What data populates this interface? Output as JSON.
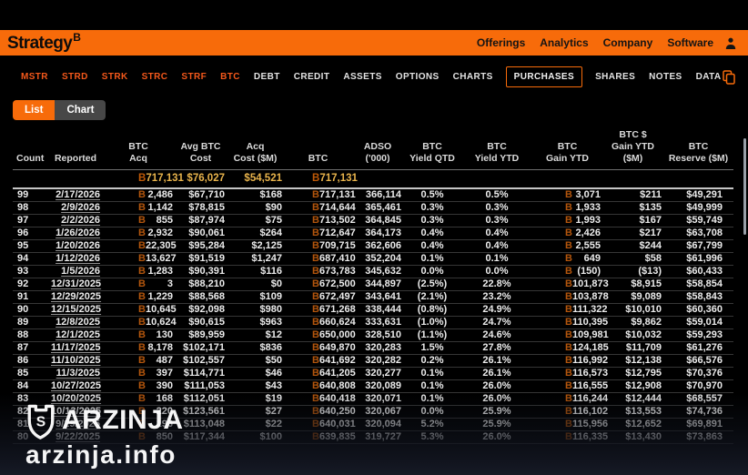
{
  "brand": {
    "logo_text": "Strategy",
    "logo_mark": "B"
  },
  "nav": {
    "items": [
      "Offerings",
      "Analytics",
      "Company",
      "Software"
    ]
  },
  "icons": {
    "account": "person-icon",
    "copy": "copy-icon",
    "watermark_shield": "shield-logo-icon"
  },
  "colors": {
    "accent_orange": "#F76B0A",
    "summary_gold": "#E9B44C",
    "btc_symbol_orange": "#B4560D",
    "background": "#000000"
  },
  "tabs": [
    {
      "label": "MSTR",
      "accent": true
    },
    {
      "label": "STRD",
      "accent": true
    },
    {
      "label": "STRK",
      "accent": true
    },
    {
      "label": "STRC",
      "accent": true
    },
    {
      "label": "STRF",
      "accent": true
    },
    {
      "label": "BTC",
      "accent": true
    },
    {
      "label": "DEBT"
    },
    {
      "label": "CREDIT"
    },
    {
      "label": "ASSETS"
    },
    {
      "label": "OPTIONS"
    },
    {
      "label": "CHARTS"
    },
    {
      "label": "PURCHASES",
      "active": true
    },
    {
      "label": "SHARES"
    },
    {
      "label": "NOTES"
    },
    {
      "label": "DATA"
    }
  ],
  "view_toggle": [
    {
      "label": "List",
      "active": true
    },
    {
      "label": "Chart",
      "active": false
    }
  ],
  "table": {
    "btc_symbol": "B",
    "columns": [
      {
        "id": "count",
        "label": "Count"
      },
      {
        "id": "reported",
        "label": "Reported"
      },
      {
        "id": "btc_acq",
        "label": "BTC\nAcq",
        "btc": true
      },
      {
        "id": "avg_cost",
        "label": "Avg BTC\nCost"
      },
      {
        "id": "acq_cost",
        "label": "Acq\nCost ($M)"
      },
      {
        "id": "btc",
        "label": "BTC",
        "btc": true
      },
      {
        "id": "adso",
        "label": "ADSO ('000)"
      },
      {
        "id": "yield_qtd",
        "label": "BTC\nYield QTD"
      },
      {
        "id": "yield_ytd",
        "label": "BTC\nYield YTD"
      },
      {
        "id": "gain_ytd",
        "label": "BTC\nGain YTD",
        "btc": true
      },
      {
        "id": "gain_usd",
        "label": "BTC $\nGain YTD ($M)"
      },
      {
        "id": "reserve",
        "label": "BTC\nReserve ($M)"
      }
    ],
    "summary": {
      "btc_acq": "717,131",
      "avg_cost": "$76,027",
      "acq_cost": "$54,521",
      "btc": "717,131"
    },
    "rows": [
      {
        "count": "99",
        "reported": "2/17/2026",
        "btc_acq": "2,486",
        "avg_cost": "$67,710",
        "acq_cost": "$168",
        "btc": "717,131",
        "adso": "366,114",
        "yield_qtd": "0.5%",
        "yield_ytd": "0.5%",
        "gain_ytd": "3,071",
        "gain_usd": "$211",
        "reserve": "$49,291"
      },
      {
        "count": "98",
        "reported": "2/9/2026",
        "btc_acq": "1,142",
        "avg_cost": "$78,815",
        "acq_cost": "$90",
        "btc": "714,644",
        "adso": "365,461",
        "yield_qtd": "0.3%",
        "yield_ytd": "0.3%",
        "gain_ytd": "1,933",
        "gain_usd": "$135",
        "reserve": "$49,999"
      },
      {
        "count": "97",
        "reported": "2/2/2026",
        "btc_acq": "855",
        "avg_cost": "$87,974",
        "acq_cost": "$75",
        "btc": "713,502",
        "adso": "364,845",
        "yield_qtd": "0.3%",
        "yield_ytd": "0.3%",
        "gain_ytd": "1,993",
        "gain_usd": "$167",
        "reserve": "$59,749"
      },
      {
        "count": "96",
        "reported": "1/26/2026",
        "btc_acq": "2,932",
        "avg_cost": "$90,061",
        "acq_cost": "$264",
        "btc": "712,647",
        "adso": "364,173",
        "yield_qtd": "0.4%",
        "yield_ytd": "0.4%",
        "gain_ytd": "2,426",
        "gain_usd": "$217",
        "reserve": "$63,708"
      },
      {
        "count": "95",
        "reported": "1/20/2026",
        "btc_acq": "22,305",
        "avg_cost": "$95,284",
        "acq_cost": "$2,125",
        "btc": "709,715",
        "adso": "362,606",
        "yield_qtd": "0.4%",
        "yield_ytd": "0.4%",
        "gain_ytd": "2,555",
        "gain_usd": "$244",
        "reserve": "$67,799"
      },
      {
        "count": "94",
        "reported": "1/12/2026",
        "btc_acq": "13,627",
        "avg_cost": "$91,519",
        "acq_cost": "$1,247",
        "btc": "687,410",
        "adso": "352,204",
        "yield_qtd": "0.1%",
        "yield_ytd": "0.1%",
        "gain_ytd": "649",
        "gain_usd": "$58",
        "reserve": "$61,996"
      },
      {
        "count": "93",
        "reported": "1/5/2026",
        "btc_acq": "1,283",
        "avg_cost": "$90,391",
        "acq_cost": "$116",
        "btc": "673,783",
        "adso": "345,632",
        "yield_qtd": "0.0%",
        "yield_ytd": "0.0%",
        "gain_ytd": "(150)",
        "gain_usd": "($13)",
        "reserve": "$60,433"
      },
      {
        "count": "92",
        "reported": "12/31/2025",
        "btc_acq": "3",
        "avg_cost": "$88,210",
        "acq_cost": "$0",
        "btc": "672,500",
        "adso": "344,897",
        "yield_qtd": "(2.5%)",
        "yield_ytd": "22.8%",
        "gain_ytd": "101,873",
        "gain_usd": "$8,915",
        "reserve": "$58,854"
      },
      {
        "count": "91",
        "reported": "12/29/2025",
        "btc_acq": "1,229",
        "avg_cost": "$88,568",
        "acq_cost": "$109",
        "btc": "672,497",
        "adso": "343,641",
        "yield_qtd": "(2.1%)",
        "yield_ytd": "23.2%",
        "gain_ytd": "103,878",
        "gain_usd": "$9,089",
        "reserve": "$58,843"
      },
      {
        "count": "90",
        "reported": "12/15/2025",
        "btc_acq": "10,645",
        "avg_cost": "$92,098",
        "acq_cost": "$980",
        "btc": "671,268",
        "adso": "338,444",
        "yield_qtd": "(0.8%)",
        "yield_ytd": "24.9%",
        "gain_ytd": "111,322",
        "gain_usd": "$10,010",
        "reserve": "$60,360"
      },
      {
        "count": "89",
        "reported": "12/8/2025",
        "btc_acq": "10,624",
        "avg_cost": "$90,615",
        "acq_cost": "$963",
        "btc": "660,624",
        "adso": "333,631",
        "yield_qtd": "(1.0%)",
        "yield_ytd": "24.7%",
        "gain_ytd": "110,395",
        "gain_usd": "$9,862",
        "reserve": "$59,014"
      },
      {
        "count": "88",
        "reported": "12/1/2025",
        "btc_acq": "130",
        "avg_cost": "$89,959",
        "acq_cost": "$12",
        "btc": "650,000",
        "adso": "328,510",
        "yield_qtd": "(1.1%)",
        "yield_ytd": "24.6%",
        "gain_ytd": "109,981",
        "gain_usd": "$10,032",
        "reserve": "$59,293"
      },
      {
        "count": "87",
        "reported": "11/17/2025",
        "btc_acq": "8,178",
        "avg_cost": "$102,171",
        "acq_cost": "$836",
        "btc": "649,870",
        "adso": "320,283",
        "yield_qtd": "1.5%",
        "yield_ytd": "27.8%",
        "gain_ytd": "124,185",
        "gain_usd": "$11,709",
        "reserve": "$61,276"
      },
      {
        "count": "86",
        "reported": "11/10/2025",
        "btc_acq": "487",
        "avg_cost": "$102,557",
        "acq_cost": "$50",
        "btc": "641,692",
        "adso": "320,282",
        "yield_qtd": "0.2%",
        "yield_ytd": "26.1%",
        "gain_ytd": "116,992",
        "gain_usd": "$12,138",
        "reserve": "$66,576"
      },
      {
        "count": "85",
        "reported": "11/3/2025",
        "btc_acq": "397",
        "avg_cost": "$114,771",
        "acq_cost": "$46",
        "btc": "641,205",
        "adso": "320,277",
        "yield_qtd": "0.1%",
        "yield_ytd": "26.1%",
        "gain_ytd": "116,573",
        "gain_usd": "$12,795",
        "reserve": "$70,376"
      },
      {
        "count": "84",
        "reported": "10/27/2025",
        "btc_acq": "390",
        "avg_cost": "$111,053",
        "acq_cost": "$43",
        "btc": "640,808",
        "adso": "320,089",
        "yield_qtd": "0.1%",
        "yield_ytd": "26.0%",
        "gain_ytd": "116,555",
        "gain_usd": "$12,908",
        "reserve": "$70,970"
      },
      {
        "count": "83",
        "reported": "10/20/2025",
        "btc_acq": "168",
        "avg_cost": "$112,051",
        "acq_cost": "$19",
        "btc": "640,418",
        "adso": "320,071",
        "yield_qtd": "0.1%",
        "yield_ytd": "26.0%",
        "gain_ytd": "116,244",
        "gain_usd": "$12,444",
        "reserve": "$68,557"
      },
      {
        "count": "82",
        "reported": "10/13/2025",
        "btc_acq": "220",
        "avg_cost": "$123,561",
        "acq_cost": "$27",
        "btc": "640,250",
        "adso": "320,067",
        "yield_qtd": "0.0%",
        "yield_ytd": "25.9%",
        "gain_ytd": "116,102",
        "gain_usd": "$13,553",
        "reserve": "$74,736"
      },
      {
        "count": "81",
        "reported": "9/29/2025",
        "btc_acq": "196",
        "avg_cost": "$113,048",
        "acq_cost": "$22",
        "btc": "640,031",
        "adso": "320,094",
        "yield_qtd": "5.2%",
        "yield_ytd": "25.9%",
        "gain_ytd": "115,956",
        "gain_usd": "$12,652",
        "reserve": "$69,891"
      },
      {
        "count": "80",
        "reported": "9/22/2025",
        "btc_acq": "850",
        "avg_cost": "$117,344",
        "acq_cost": "$100",
        "btc": "639,835",
        "adso": "319,727",
        "yield_qtd": "5.3%",
        "yield_ytd": "26.0%",
        "gain_ytd": "116,335",
        "gain_usd": "$13,430",
        "reserve": "$73,863"
      }
    ]
  },
  "watermark": {
    "title": "ARZINJA",
    "subtitle": "arzinja.info",
    "shield_letter": "S"
  }
}
